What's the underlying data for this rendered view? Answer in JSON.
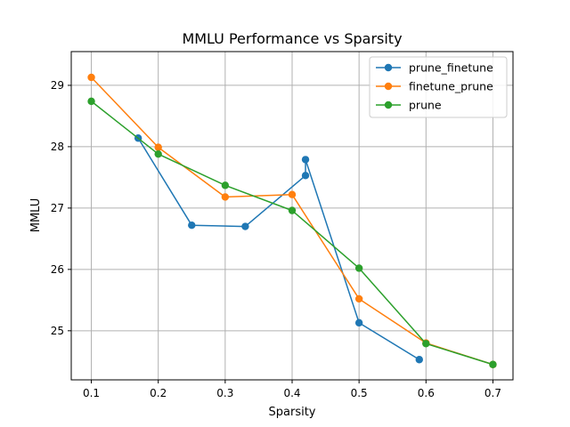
{
  "chart_data": {
    "type": "line",
    "title": "MMLU Performance vs Sparsity",
    "xlabel": "Sparsity",
    "ylabel": "MMLU",
    "xlim": [
      0.07,
      0.73
    ],
    "ylim": [
      24.2,
      29.55
    ],
    "xticks": [
      "0.1",
      "0.2",
      "0.3",
      "0.4",
      "0.5",
      "0.6",
      "0.7"
    ],
    "yticks": [
      "25",
      "26",
      "27",
      "28",
      "29"
    ],
    "grid": true,
    "legend_position": "top-right",
    "series": [
      {
        "name": "prune_finetune",
        "color": "#1f77b4",
        "points": [
          [
            0.17,
            28.14
          ],
          [
            0.25,
            26.72
          ],
          [
            0.33,
            26.7
          ],
          [
            0.42,
            27.53
          ],
          [
            0.42,
            27.79
          ],
          [
            0.5,
            25.13
          ],
          [
            0.59,
            24.53
          ]
        ]
      },
      {
        "name": "finetune_prune",
        "color": "#ff7f0e",
        "points": [
          [
            0.1,
            29.13
          ],
          [
            0.2,
            27.99
          ],
          [
            0.3,
            27.18
          ],
          [
            0.4,
            27.22
          ],
          [
            0.5,
            25.52
          ],
          [
            0.6,
            24.8
          ],
          [
            0.7,
            24.45
          ]
        ]
      },
      {
        "name": "prune",
        "color": "#2ca02c",
        "points": [
          [
            0.1,
            28.74
          ],
          [
            0.2,
            27.88
          ],
          [
            0.3,
            27.37
          ],
          [
            0.4,
            26.96
          ],
          [
            0.5,
            26.02
          ],
          [
            0.6,
            24.79
          ],
          [
            0.7,
            24.45
          ]
        ]
      }
    ]
  }
}
